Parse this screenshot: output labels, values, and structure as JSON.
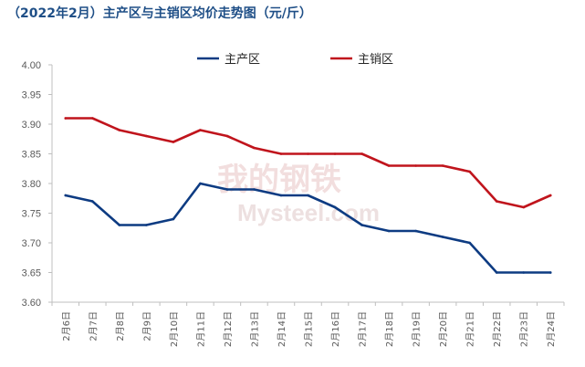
{
  "colors": {
    "title": "#1f4f87",
    "main_production": "#0d3b82",
    "main_sales": "#c0141c",
    "axis": "#bfbfbf",
    "tick_text": "#595959"
  },
  "chart_data": {
    "type": "line",
    "title": "（2022年2月）主产区与主销区均价走势图（元/斤）",
    "xlabel": "",
    "ylabel": "",
    "ylim": [
      3.6,
      4.0
    ],
    "yticks": [
      "3.60",
      "3.65",
      "3.70",
      "3.75",
      "3.80",
      "3.85",
      "3.90",
      "3.95",
      "4.00"
    ],
    "ytick_values": [
      3.6,
      3.65,
      3.7,
      3.75,
      3.8,
      3.85,
      3.9,
      3.95,
      4.0
    ],
    "categories": [
      "2月6日",
      "2月7日",
      "2月8日",
      "2月9日",
      "2月10日",
      "2月11日",
      "2月12日",
      "2月13日",
      "2月14日",
      "2月15日",
      "2月16日",
      "2月17日",
      "2月18日",
      "2月19日",
      "2月20日",
      "2月21日",
      "2月22日",
      "2月23日",
      "2月24日"
    ],
    "series": [
      {
        "name": "主产区",
        "color": "#0d3b82",
        "values": [
          3.78,
          3.77,
          3.73,
          3.73,
          3.74,
          3.8,
          3.79,
          3.79,
          3.78,
          3.78,
          3.76,
          3.73,
          3.72,
          3.72,
          3.71,
          3.7,
          3.65,
          3.65,
          3.65
        ]
      },
      {
        "name": "主销区",
        "color": "#c0141c",
        "values": [
          3.91,
          3.91,
          3.89,
          3.88,
          3.87,
          3.89,
          3.88,
          3.86,
          3.85,
          3.85,
          3.85,
          3.85,
          3.83,
          3.83,
          3.83,
          3.82,
          3.77,
          3.76,
          3.78
        ]
      }
    ],
    "legend_position": "top",
    "grid": false,
    "watermark": {
      "cn": "我的钢铁",
      "en": "Mysteel.com"
    }
  }
}
